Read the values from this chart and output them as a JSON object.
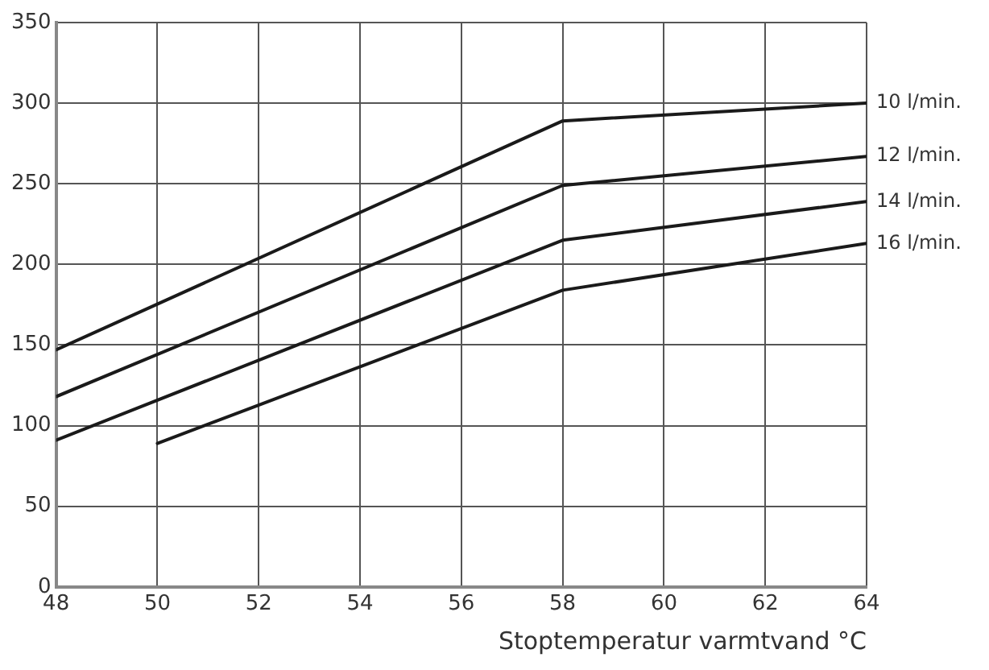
{
  "chart_data": {
    "type": "line",
    "xlabel": "Stoptemperatur varmtvand °C",
    "xlim": [
      48,
      64
    ],
    "xticks": [
      48,
      50,
      52,
      54,
      56,
      58,
      60,
      62,
      64
    ],
    "ylim": [
      0,
      350
    ],
    "yticks": [
      0,
      50,
      100,
      150,
      200,
      250,
      300,
      350
    ],
    "grid": true,
    "legend": false,
    "marker": "none",
    "line_style": "solid",
    "series": [
      {
        "name": "10 l/min.",
        "color": "#1a1a1a",
        "x": [
          48,
          58,
          64
        ],
        "values": [
          147,
          289,
          300
        ]
      },
      {
        "name": "12 l/min.",
        "color": "#1a1a1a",
        "x": [
          48,
          58,
          64
        ],
        "values": [
          118,
          249,
          267
        ]
      },
      {
        "name": "14 l/min.",
        "color": "#1a1a1a",
        "x": [
          48,
          58,
          64
        ],
        "values": [
          91,
          215,
          239
        ]
      },
      {
        "name": "16 l/min.",
        "color": "#1a1a1a",
        "x": [
          50,
          58,
          64
        ],
        "values": [
          89,
          184,
          213
        ]
      }
    ]
  }
}
